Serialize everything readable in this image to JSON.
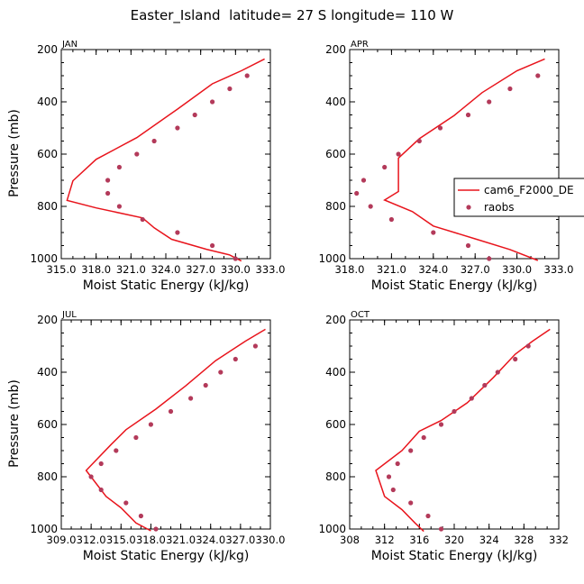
{
  "figure": {
    "title": "Easter_Island  latitude= 27 S longitude= 110 W",
    "xlabel": "Moist Static Energy (kJ/kg)",
    "ylabel": "Pressure (mb)",
    "colors": {
      "model": "#e8141c",
      "obs": "#b33a5a"
    }
  },
  "legend": {
    "model_label": "cam6_F2000_DE",
    "obs_label": "raobs"
  },
  "chart_data": [
    {
      "type": "line",
      "title": "JAN",
      "xlim": [
        315,
        333
      ],
      "ylim": [
        1000,
        200
      ],
      "xticks": [
        315,
        318,
        321,
        324,
        327,
        330,
        333
      ],
      "xtick_labels": [
        "315.0",
        "318.0",
        "321.0",
        "324.0",
        "327.0",
        "330.0",
        "333.0"
      ],
      "yticks": [
        200,
        400,
        600,
        800,
        1000
      ],
      "series": [
        {
          "name": "cam6_F2000_DE",
          "style": "line",
          "x": [
            332.5,
            330.5,
            328.0,
            325.0,
            321.5,
            318.0,
            316.0,
            315.5,
            318.0,
            322.0,
            323.0,
            324.5,
            327.5,
            329.5,
            330.5
          ],
          "y": [
            236,
            281,
            331,
            428,
            537,
            620,
            702,
            777,
            806,
            844,
            882,
            926,
            964,
            986,
            1009
          ]
        },
        {
          "name": "raobs",
          "style": "scatter",
          "x": [
            331.0,
            329.5,
            328.0,
            326.5,
            325.0,
            323.0,
            321.5,
            320.0,
            319.0,
            319.0,
            320.0,
            322.0,
            325.0,
            328.0,
            330.0
          ],
          "y": [
            300,
            350,
            400,
            450,
            500,
            550,
            600,
            650,
            700,
            750,
            800,
            850,
            900,
            950,
            1000
          ]
        }
      ]
    },
    {
      "type": "line",
      "title": "APR",
      "xlim": [
        318,
        333
      ],
      "ylim": [
        1000,
        200
      ],
      "xticks": [
        318,
        321,
        324,
        327,
        330,
        333
      ],
      "xtick_labels": [
        "318.0",
        "321.0",
        "324.0",
        "327.0",
        "330.0",
        "333.0"
      ],
      "yticks": [
        200,
        400,
        600,
        800,
        1000
      ],
      "series": [
        {
          "name": "cam6_F2000_DE",
          "style": "line",
          "x": [
            332.0,
            330.0,
            327.5,
            325.5,
            323.0,
            321.5,
            321.5,
            321.5,
            320.5,
            322.5,
            324.0,
            327.0,
            329.5,
            331.5
          ],
          "y": [
            236,
            281,
            365,
            452,
            541,
            615,
            698,
            743,
            776,
            820,
            875,
            924,
            965,
            1007
          ]
        },
        {
          "name": "raobs",
          "style": "scatter",
          "x": [
            331.5,
            329.5,
            328.0,
            326.5,
            324.5,
            323.0,
            321.5,
            320.5,
            319.0,
            318.5,
            319.5,
            321.0,
            324.0,
            326.5,
            328.0
          ],
          "y": [
            300,
            350,
            400,
            450,
            500,
            550,
            600,
            650,
            700,
            750,
            800,
            850,
            900,
            950,
            1000
          ]
        }
      ]
    },
    {
      "type": "line",
      "title": "JUL",
      "xlim": [
        309,
        330
      ],
      "ylim": [
        1000,
        200
      ],
      "xticks": [
        309,
        312,
        315,
        318,
        321,
        324,
        327,
        330
      ],
      "xtick_labels": [
        "309.0",
        "312.0",
        "315.0",
        "318.0",
        "321.0",
        "324.0",
        "327.0",
        "330.0"
      ],
      "yticks": [
        200,
        400,
        600,
        800,
        1000
      ],
      "series": [
        {
          "name": "cam6_F2000_DE",
          "style": "line",
          "x": [
            329.5,
            327.5,
            324.5,
            321.5,
            318.5,
            315.5,
            314.0,
            311.5,
            313.5,
            315.0,
            316.5,
            318.0
          ],
          "y": [
            236,
            281,
            356,
            452,
            541,
            620,
            677,
            776,
            875,
            919,
            977,
            1007
          ]
        },
        {
          "name": "raobs",
          "style": "scatter",
          "x": [
            328.5,
            326.5,
            325.0,
            323.5,
            322.0,
            320.0,
            318.0,
            316.5,
            314.5,
            313.0,
            312.0,
            313.0,
            315.5,
            317.0,
            318.5
          ],
          "y": [
            300,
            350,
            400,
            450,
            500,
            550,
            600,
            650,
            700,
            750,
            800,
            850,
            900,
            950,
            1000
          ]
        }
      ]
    },
    {
      "type": "line",
      "title": "OCT",
      "xlim": [
        308,
        332
      ],
      "ylim": [
        1000,
        200
      ],
      "xticks": [
        308,
        312,
        316,
        320,
        324,
        328,
        332
      ],
      "xtick_labels": [
        "308",
        "312",
        "316",
        "320",
        "324",
        "328",
        "332"
      ],
      "yticks": [
        200,
        400,
        600,
        800,
        1000
      ],
      "series": [
        {
          "name": "cam6_F2000_DE",
          "style": "line",
          "x": [
            331.0,
            329.0,
            327.0,
            324.5,
            321.5,
            318.5,
            316.0,
            314.0,
            311.0,
            312.0,
            314.0,
            315.5,
            316.5
          ],
          "y": [
            236,
            281,
            331,
            420,
            517,
            585,
            626,
            700,
            776,
            875,
            926,
            977,
            1009
          ]
        },
        {
          "name": "raobs",
          "style": "scatter",
          "x": [
            328.5,
            327.0,
            325.0,
            323.5,
            322.0,
            320.0,
            318.5,
            316.5,
            315.0,
            313.5,
            312.5,
            313.0,
            315.0,
            317.0,
            318.5
          ],
          "y": [
            300,
            350,
            400,
            450,
            500,
            550,
            600,
            650,
            700,
            750,
            800,
            850,
            900,
            950,
            1000
          ]
        }
      ]
    }
  ]
}
